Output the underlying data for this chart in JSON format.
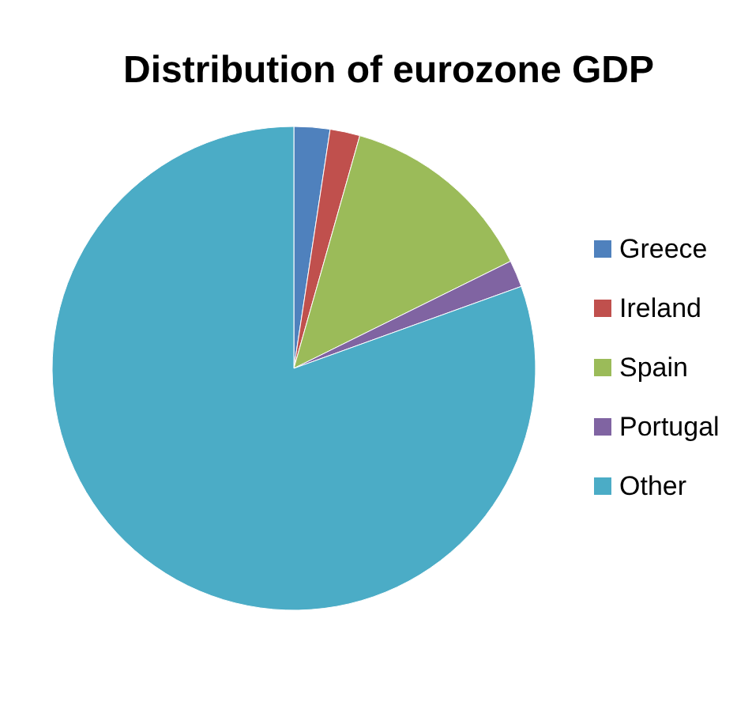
{
  "chart_data": {
    "type": "pie",
    "title": "Distribution of eurozone GDP",
    "categories": [
      "Greece",
      "Ireland",
      "Spain",
      "Portugal",
      "Other"
    ],
    "values": [
      2.4,
      2.0,
      13.3,
      1.8,
      80.5
    ],
    "colors": [
      "#4f81bd",
      "#c0504d",
      "#9bbb59",
      "#8064a2",
      "#4bacc6"
    ],
    "legend": "right"
  }
}
